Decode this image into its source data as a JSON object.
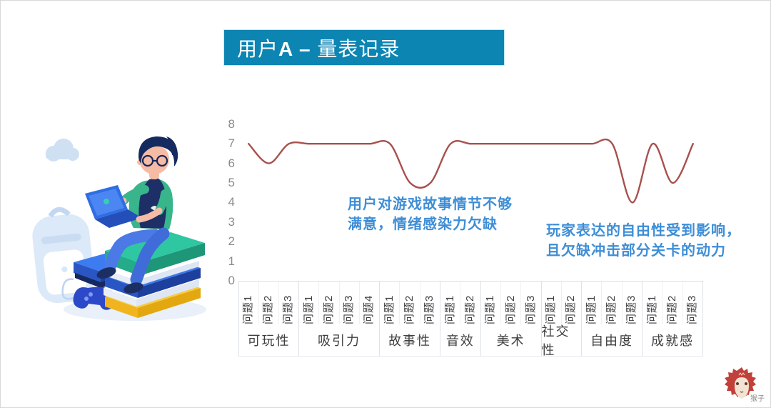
{
  "title": {
    "prefix": "用户",
    "emphasis": "A – ",
    "suffix": "量表记录"
  },
  "chart_data": {
    "type": "line",
    "title": "用户A – 量表记录",
    "ylabel": "",
    "xlabel": "",
    "ylim": [
      0,
      8
    ],
    "yticks": [
      0,
      1,
      2,
      3,
      4,
      5,
      6,
      7,
      8
    ],
    "grid": false,
    "legend": "none",
    "line_color": "#a8504d",
    "smooth": true,
    "groups": [
      {
        "category": "可玩性",
        "questions": [
          "问题1",
          "问题2",
          "问题3"
        ],
        "values": [
          7,
          6,
          7
        ]
      },
      {
        "category": "吸引力",
        "questions": [
          "问题1",
          "问题2",
          "问题3",
          "问题4"
        ],
        "values": [
          7,
          7,
          7,
          7
        ]
      },
      {
        "category": "故事性",
        "questions": [
          "问题1",
          "问题2",
          "问题3"
        ],
        "values": [
          7,
          5,
          5
        ]
      },
      {
        "category": "音效",
        "questions": [
          "问题1",
          "问题2"
        ],
        "values": [
          7,
          7
        ]
      },
      {
        "category": "美术",
        "questions": [
          "问题1",
          "问题2",
          "问题3"
        ],
        "values": [
          7,
          7,
          7
        ]
      },
      {
        "category": "社交性",
        "questions": [
          "问题1",
          "问题2"
        ],
        "values": [
          7,
          7
        ]
      },
      {
        "category": "自由度",
        "questions": [
          "问题1",
          "问题2",
          "问题3"
        ],
        "values": [
          7,
          7,
          4
        ]
      },
      {
        "category": "成就感",
        "questions": [
          "问题1",
          "问题2",
          "问题3"
        ],
        "values": [
          7,
          5,
          7
        ]
      }
    ],
    "annotations": [
      {
        "lines": [
          "用户对游戏故事情节不够",
          "满意，情绪感染力欠缺"
        ],
        "color": "#3e8ed6"
      },
      {
        "lines": [
          "玩家表达的自由性受到影响，",
          "且欠缺冲击部分关卡的动力"
        ],
        "color": "#3e8ed6"
      }
    ]
  },
  "logo": {
    "text": "猴子"
  }
}
